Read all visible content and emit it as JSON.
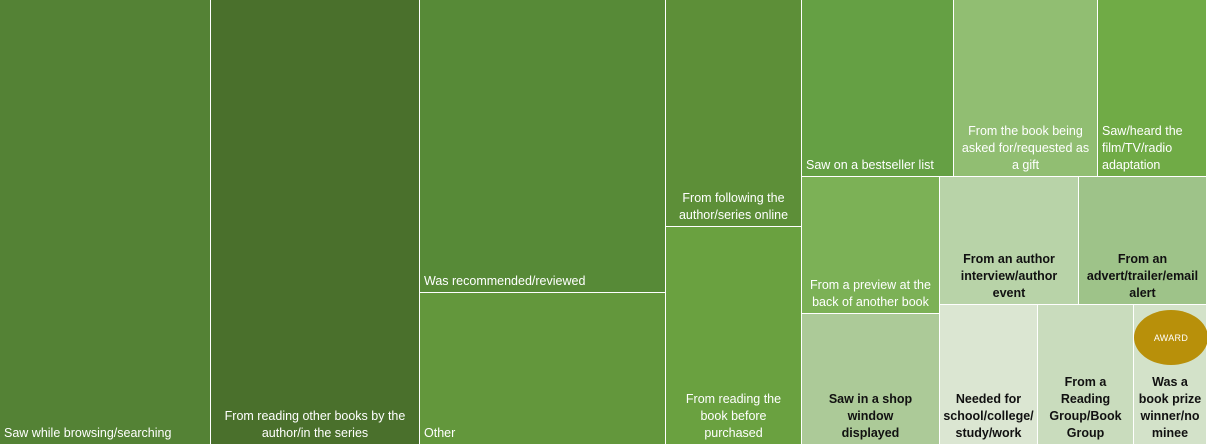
{
  "chart_data": {
    "type": "treemap",
    "title": "",
    "items": [
      {
        "label": "Saw while browsing/searching",
        "value": 89,
        "color": "#548235"
      },
      {
        "label": "From reading other books by the\nauthor/in the series",
        "value": 89,
        "color": "#4a702c"
      },
      {
        "label": "Was recommended/reviewed",
        "value": 67,
        "color": "#578a37"
      },
      {
        "label": "Other",
        "value": 35,
        "color": "#63973c"
      },
      {
        "label": "From following the\nauthor/series online",
        "value": 31,
        "color": "#5d8f38"
      },
      {
        "label": "From reading the\nbook before\npurchased",
        "value": 29,
        "color": "#6aa140"
      },
      {
        "label": "Saw on a bestseller list",
        "value": 17,
        "color": "#65a044"
      },
      {
        "label": "From the book being\nasked for/requested as\na gift",
        "value": 15,
        "color": "#91be72"
      },
      {
        "label": "Saw/heard the\nfilm/TV/radio\nadaptation",
        "value": 11,
        "color": "#70ab46"
      },
      {
        "label": "From a preview at the\nback of another book",
        "value": 13,
        "color": "#7cb156"
      },
      {
        "label": "From an author\ninterview/author\nevent",
        "value": 11,
        "color": "#b8d3a8"
      },
      {
        "label": "From an\nadvert/trailer/email\nalert",
        "value": 10,
        "color": "#9ec389"
      },
      {
        "label": "Saw in a shop window\ndisplayed",
        "value": 10,
        "color": "#acca98"
      },
      {
        "label": "Needed for\nschool/college/\nstudy/work",
        "value": 7,
        "color": "#dbe6d2"
      },
      {
        "label": "From a\nReading\nGroup/Book\nGroup",
        "value": 7,
        "color": "#c9dcbd"
      },
      {
        "label": "Was a\nbook prize\nwinner/no\nminee",
        "value": 5,
        "color": "#d3e2c9"
      }
    ],
    "annotations": [
      {
        "text": "AWARD",
        "color": "#b8900a"
      }
    ]
  }
}
